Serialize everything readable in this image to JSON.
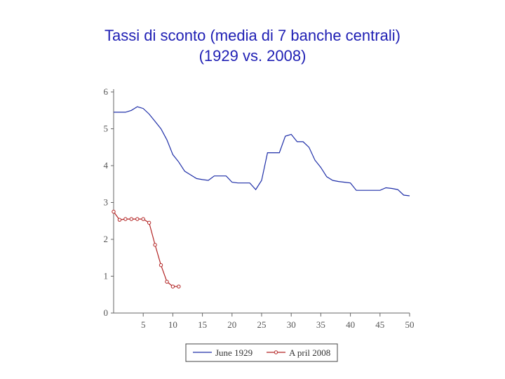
{
  "title_line1": "Tassi di sconto (media di 7 banche centrali)",
  "title_line2": "(1929 vs. 2008)",
  "chart_data": {
    "type": "line",
    "title": "Tassi di sconto (media di 7 banche centrali) (1929 vs. 2008)",
    "xlabel": "",
    "ylabel": "",
    "xlim": [
      0,
      50
    ],
    "ylim": [
      0,
      6
    ],
    "xticks": [
      5,
      10,
      15,
      20,
      25,
      30,
      35,
      40,
      45,
      50
    ],
    "yticks": [
      0,
      1,
      2,
      3,
      4,
      5,
      6
    ],
    "grid": false,
    "legend": "bottom",
    "series": [
      {
        "name": "June 1929",
        "color": "#1f2fa8",
        "marker": "none",
        "x": [
          0,
          1,
          2,
          3,
          4,
          5,
          6,
          7,
          8,
          9,
          10,
          11,
          12,
          13,
          14,
          15,
          16,
          17,
          18,
          19,
          20,
          21,
          22,
          23,
          24,
          25,
          26,
          27,
          28,
          29,
          30,
          31,
          32,
          33,
          34,
          35,
          36,
          37,
          38,
          39,
          40,
          41,
          42,
          43,
          44,
          45,
          46,
          47,
          48,
          49,
          50
        ],
        "y": [
          5.45,
          5.45,
          5.45,
          5.5,
          5.6,
          5.55,
          5.4,
          5.2,
          5.0,
          4.7,
          4.3,
          4.1,
          3.85,
          3.75,
          3.65,
          3.62,
          3.6,
          3.72,
          3.72,
          3.72,
          3.55,
          3.53,
          3.53,
          3.53,
          3.35,
          3.6,
          4.35,
          4.35,
          4.35,
          4.8,
          4.85,
          4.65,
          4.65,
          4.5,
          4.15,
          3.95,
          3.7,
          3.6,
          3.57,
          3.55,
          3.53,
          3.33,
          3.33,
          3.33,
          3.33,
          3.33,
          3.4,
          3.38,
          3.35,
          3.2,
          3.18
        ]
      },
      {
        "name": "A pril 2008",
        "color": "#b22222",
        "marker": "circle",
        "x": [
          0,
          1,
          2,
          3,
          4,
          5,
          6,
          7,
          8,
          9,
          10,
          11
        ],
        "y": [
          2.75,
          2.53,
          2.55,
          2.55,
          2.55,
          2.55,
          2.45,
          1.85,
          1.3,
          0.85,
          0.72,
          0.72
        ]
      }
    ]
  }
}
